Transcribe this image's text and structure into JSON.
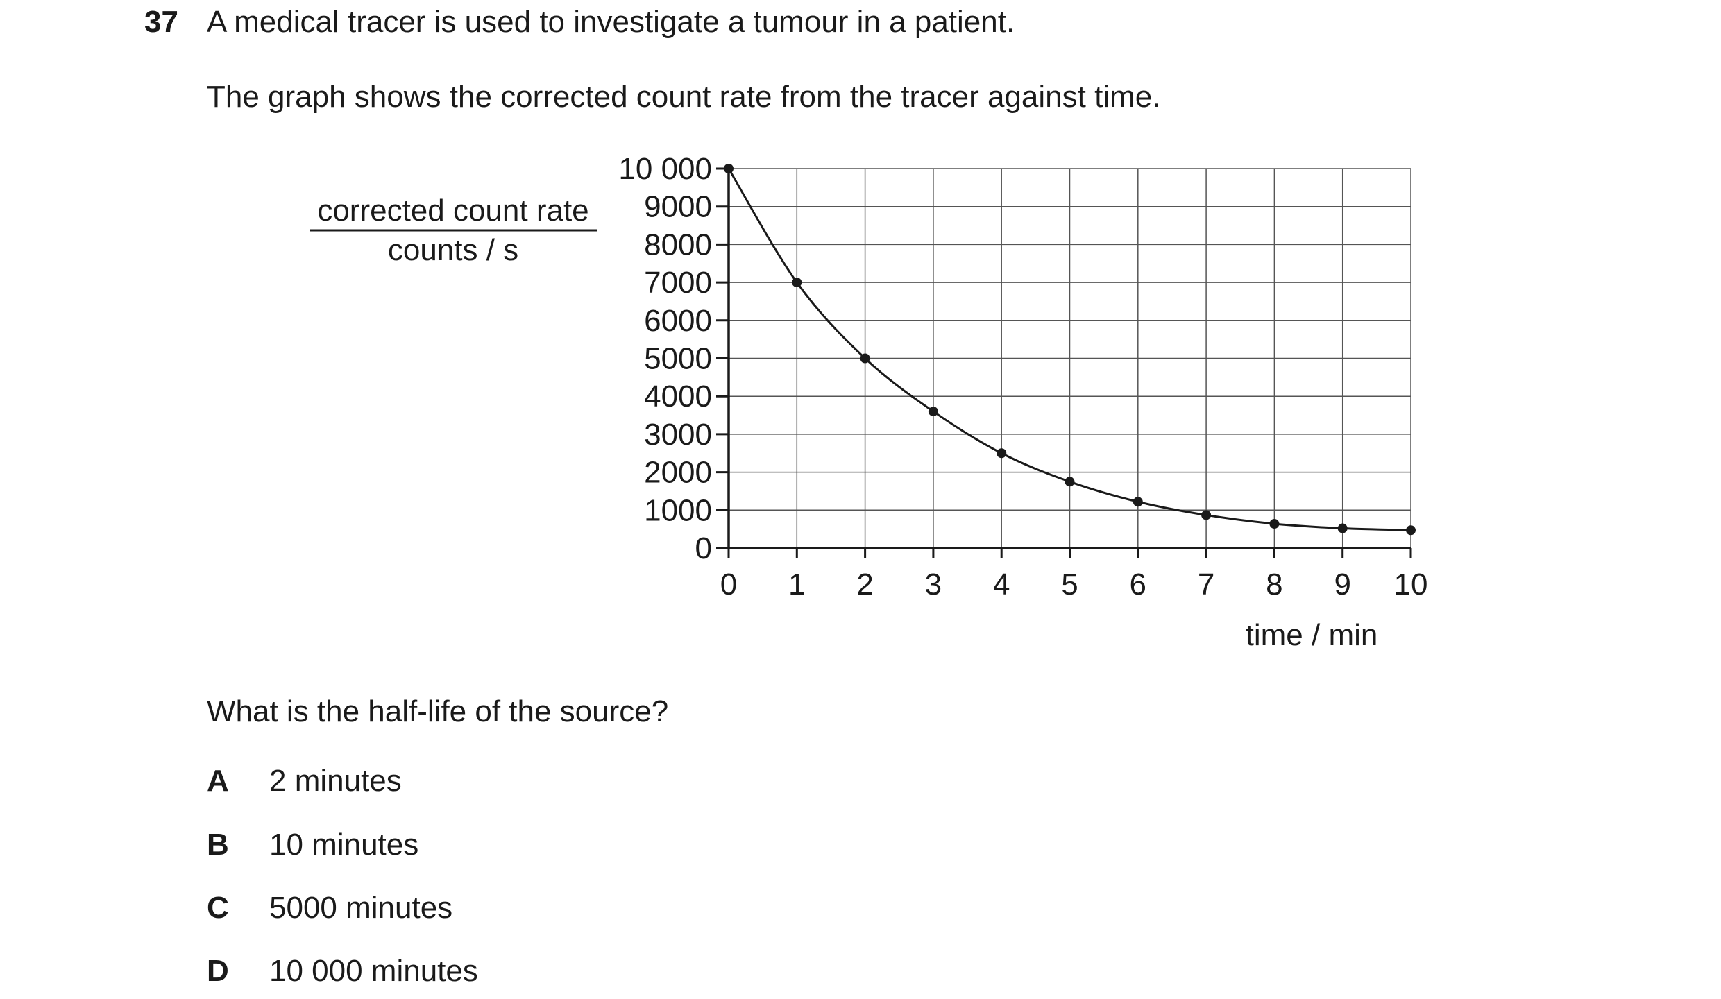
{
  "question": {
    "number": "37",
    "intro": "A medical tracer is used to investigate a tumour in a patient.",
    "graph_description": "The graph shows the corrected count rate from the tracer against time.",
    "prompt": "What is the half-life of the source?",
    "options": [
      {
        "letter": "A",
        "text": "2 minutes"
      },
      {
        "letter": "B",
        "text": "10 minutes"
      },
      {
        "letter": "C",
        "text": "5000 minutes"
      },
      {
        "letter": "D",
        "text": "10 000 minutes"
      }
    ]
  },
  "chart_data": {
    "type": "line",
    "title": "",
    "ylabel_top": "corrected count rate",
    "ylabel_bottom": "counts / s",
    "xlabel": "time / min",
    "xlim": [
      0,
      10
    ],
    "ylim": [
      0,
      10000
    ],
    "x_ticks": [
      "0",
      "1",
      "2",
      "3",
      "4",
      "5",
      "6",
      "7",
      "8",
      "9",
      "10"
    ],
    "y_ticks": [
      "0",
      "1000",
      "2000",
      "3000",
      "4000",
      "5000",
      "6000",
      "7000",
      "8000",
      "9000",
      "10 000"
    ],
    "grid": true,
    "series": [
      {
        "x": [
          0,
          1,
          2,
          3,
          4,
          5,
          6,
          7,
          8,
          9,
          10
        ],
        "y": [
          10000,
          7000,
          5000,
          3600,
          2500,
          1750,
          1220,
          870,
          640,
          520,
          470
        ]
      }
    ],
    "colors": {
      "line": "#1a1a1a",
      "grid": "#555555",
      "marker": "#1a1a1a"
    }
  }
}
